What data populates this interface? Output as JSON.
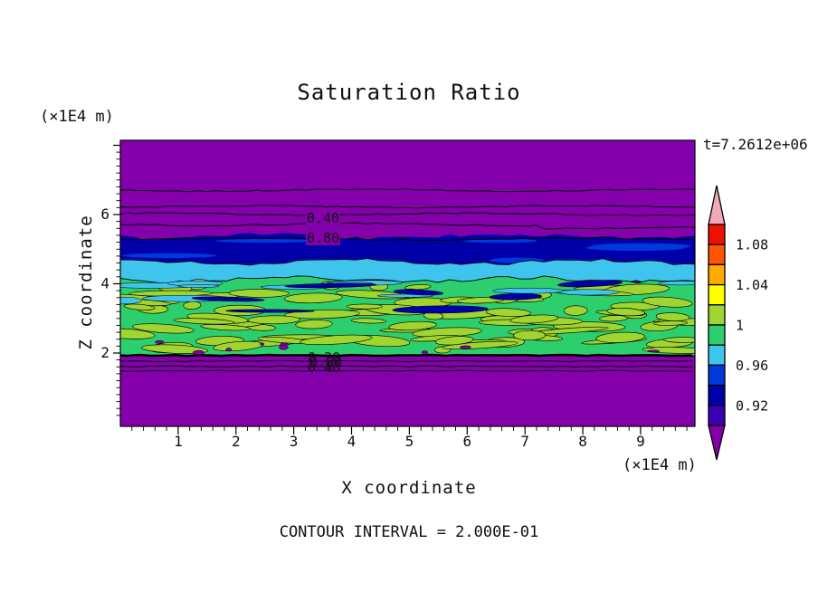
{
  "chart_data": {
    "type": "heatmap",
    "title": "Saturation Ratio",
    "xlabel": "X coordinate",
    "ylabel": "Z coordinate",
    "x_unit": "(×1E4 m)",
    "y_unit": "(×1E4 m)",
    "time_label": "t=7.2612e+06",
    "contour_interval_label": "CONTOUR INTERVAL = 2.000E-01",
    "contour_interval": 0.2,
    "x_ticks": [
      1,
      2,
      3,
      4,
      5,
      6,
      7,
      8,
      9
    ],
    "y_ticks": [
      2,
      4,
      6
    ],
    "x_minor_step": 0.2,
    "y_minor_step": 0.2,
    "xlim": [
      0,
      9.94
    ],
    "ylim": [
      0,
      8.15
    ],
    "colorbar": {
      "tick_labels": [
        "1.08",
        "1.04",
        "1",
        "0.96",
        "0.92"
      ],
      "colors_top_to_bottom": [
        "#EE1100",
        "#FF5500",
        "#FFAA00",
        "#FFFF00",
        "#A0D430",
        "#2DCE6E",
        "#3FC4EE",
        "#0038DC",
        "#0000A8",
        "#3A00B4"
      ],
      "over_color": "#F2A8B8",
      "under_color": "#8400AA",
      "value_top": 1.1,
      "value_bottom": 0.9,
      "segment_value_step": 0.02
    },
    "palette": {
      "purple": "#8400AA",
      "navy": "#0000A8",
      "blue": "#0038DC",
      "cyan": "#3FC4EE",
      "green": "#2DCE6E",
      "yellowgreen": "#A0D430",
      "black": "#000000"
    },
    "top_contours": [
      {
        "y": 0.174
      },
      {
        "y": 0.232
      },
      {
        "y": 0.258
      },
      {
        "y": 0.294,
        "step": {
          "x": 460,
          "dy": 4
        }
      },
      {
        "y": 0.345
      }
    ],
    "bottom_contours": [
      {
        "y": 0.752,
        "w": 2.6
      },
      {
        "y": 0.772,
        "w": 1
      },
      {
        "y": 0.79,
        "w": 1
      },
      {
        "y": 0.806,
        "w": 1
      }
    ],
    "bands": {
      "navy": {
        "y_top": 0.335,
        "y_bottom": 0.462,
        "amp_top": 4,
        "amp_bottom": 4
      },
      "cyan": {
        "y_top": 0.425,
        "y_bottom": 0.507,
        "amp_top": 4,
        "amp_bottom": 5
      },
      "green": {
        "y_top": 0.487,
        "y_bottom": 0.7535,
        "amp_top": 4,
        "amp_bottom": 0
      }
    },
    "contour_labels": [
      {
        "text": "0.40"
      },
      {
        "text": "0.80"
      },
      {
        "text": "0.20"
      },
      {
        "text": "0.80"
      },
      {
        "text": "0.40"
      }
    ]
  }
}
